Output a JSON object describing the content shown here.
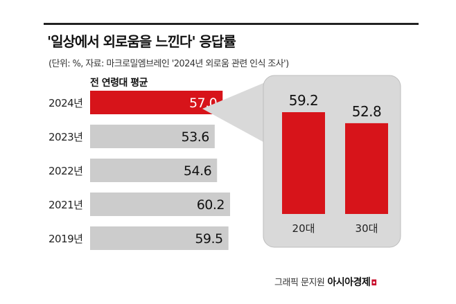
{
  "title": "'일상에서 외로움을 느낀다' 응답률",
  "source": "(단위: %, 자료: 마크로밀엠브레인 '2024년 외로움 관련 인식 조사')",
  "series_label": "전 연령대 평균",
  "credit": {
    "text": "그래픽 문지원",
    "brand": "아시아경제",
    "mark": "◘"
  },
  "colors": {
    "highlight": "#d7141a",
    "bar": "#cccccc",
    "panel": "#d9d9d9",
    "panel_border": "#bdbdbd"
  },
  "chart_data": [
    {
      "type": "bar",
      "orientation": "horizontal",
      "title": "'일상에서 외로움을 느낀다' 응답률",
      "series_label": "전 연령대 평균",
      "categories": [
        "2024년",
        "2023년",
        "2022년",
        "2021년",
        "2019년"
      ],
      "values": [
        57.0,
        53.6,
        54.6,
        60.2,
        59.5
      ],
      "value_labels": [
        "57.0",
        "53.6",
        "54.6",
        "60.2",
        "59.5"
      ],
      "highlight_index": 0
    },
    {
      "type": "bar",
      "orientation": "vertical",
      "categories": [
        "20대",
        "30대"
      ],
      "values": [
        59.2,
        52.8
      ],
      "value_labels": [
        "59.2",
        "52.8"
      ]
    }
  ]
}
